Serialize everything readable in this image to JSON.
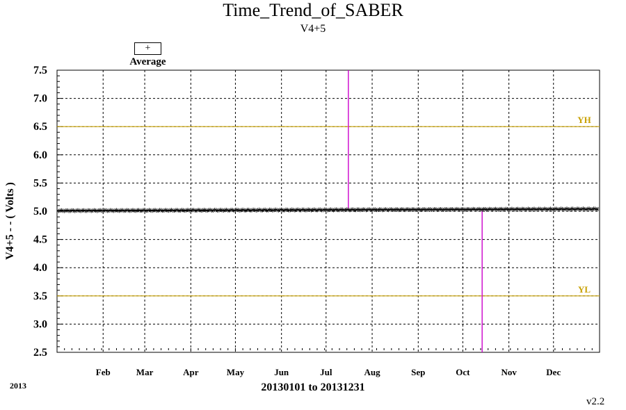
{
  "title": "Time_Trend_of_SABER",
  "subtitle": "V4+5",
  "legend": {
    "marker": "+",
    "label": "Average"
  },
  "ylabel": "V4+5  - - ( Volts )",
  "xlabel": "20130101 to 20131231",
  "year": "2013",
  "version": "v2.2",
  "colors": {
    "limit_line": "#c8a000",
    "spike": "#cc00cc",
    "data": "#000000",
    "grid": "#000000"
  },
  "chart_data": {
    "type": "line",
    "title": "Time_Trend_of_SABER",
    "subtitle": "V4+5",
    "ylabel": "V4+5  - - ( Volts )",
    "xlabel": "20130101 to 20131231",
    "x_range": [
      "2013-01-01",
      "2013-12-31"
    ],
    "ylim": [
      2.5,
      7.5
    ],
    "y_ticks": [
      "2.5",
      "3.0",
      "3.5",
      "4.0",
      "4.5",
      "5.0",
      "5.5",
      "6.0",
      "6.5",
      "7.0",
      "7.5"
    ],
    "x_ticks": [
      {
        "label": "Feb",
        "date": "2013-02-01"
      },
      {
        "label": "Mar",
        "date": "2013-03-01"
      },
      {
        "label": "Apr",
        "date": "2013-04-01"
      },
      {
        "label": "May",
        "date": "2013-05-01"
      },
      {
        "label": "Jun",
        "date": "2013-06-01"
      },
      {
        "label": "Jul",
        "date": "2013-07-01"
      },
      {
        "label": "Aug",
        "date": "2013-08-01"
      },
      {
        "label": "Sep",
        "date": "2013-09-01"
      },
      {
        "label": "Oct",
        "date": "2013-10-01"
      },
      {
        "label": "Nov",
        "date": "2013-11-01"
      },
      {
        "label": "Dec",
        "date": "2013-12-01"
      }
    ],
    "limit_lines": [
      {
        "label": "YH",
        "value": 6.5
      },
      {
        "label": "YL",
        "value": 3.5
      }
    ],
    "spikes": [
      {
        "date": "2013-07-16",
        "from": 5.03,
        "to": 7.5
      },
      {
        "date": "2013-10-14",
        "from": 5.03,
        "to": 2.5
      }
    ],
    "series": [
      {
        "name": "Average",
        "marker": "+",
        "value_start": 5.01,
        "value_end": 5.04,
        "date_start": "2013-01-01",
        "date_end": "2013-12-31"
      }
    ],
    "grid": true,
    "legend_position": "top-left"
  }
}
